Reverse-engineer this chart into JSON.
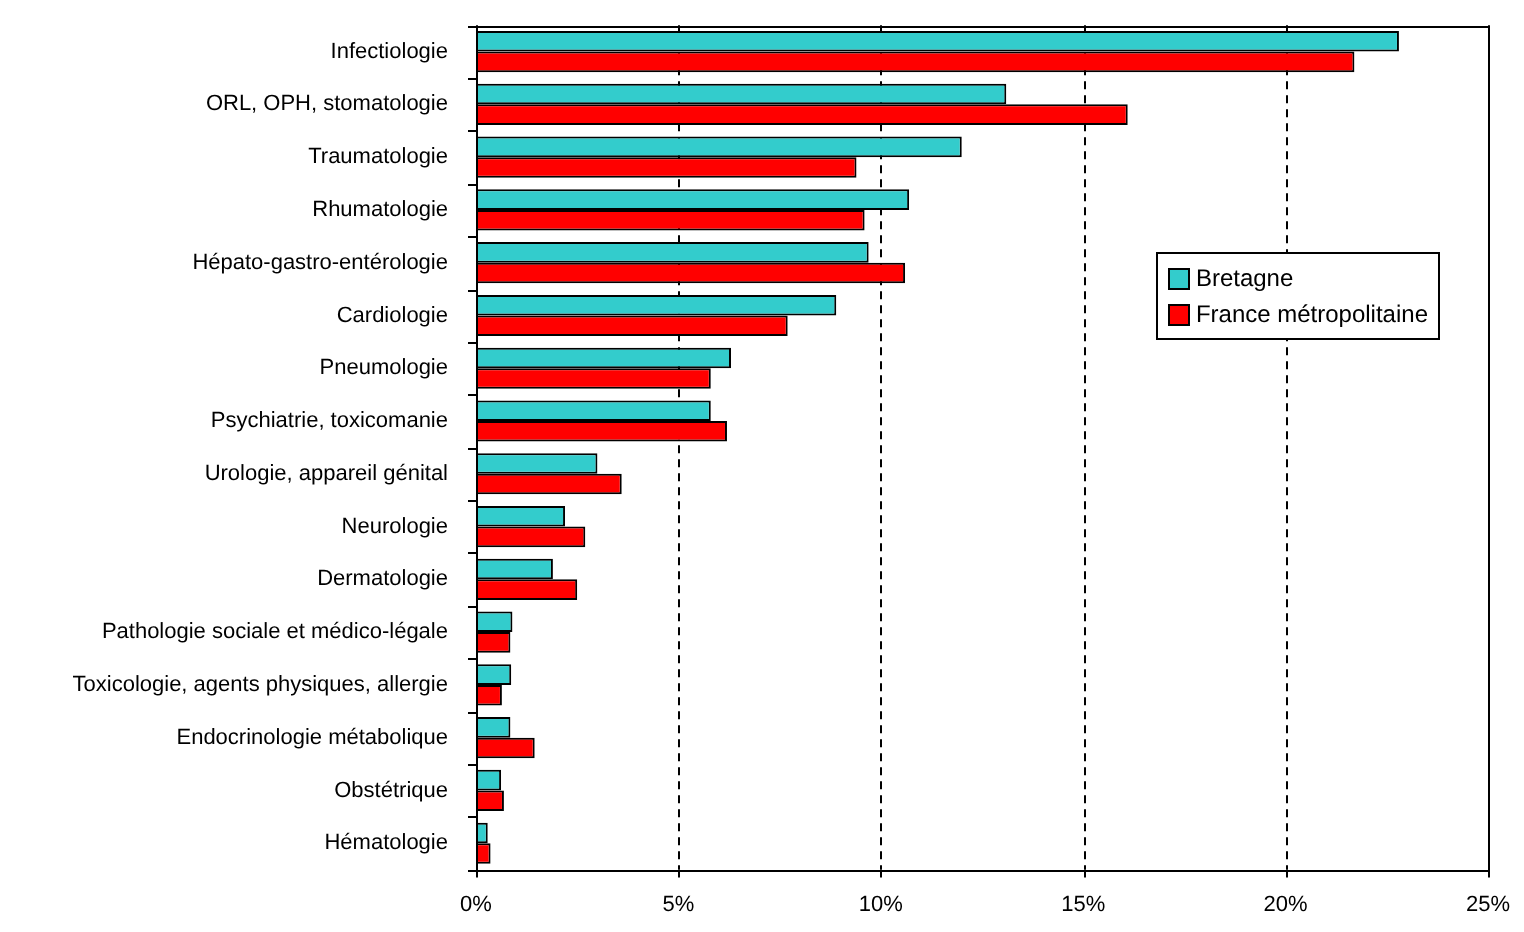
{
  "chart_data": {
    "type": "bar",
    "orientation": "horizontal",
    "categories": [
      "Infectiologie",
      "ORL, OPH, stomatologie",
      "Traumatologie",
      "Rhumatologie",
      "Hépato-gastro-entérologie",
      "Cardiologie",
      "Pneumologie",
      "Psychiatrie, toxicomanie",
      "Urologie, appareil génital",
      "Neurologie",
      "Dermatologie",
      "Pathologie sociale et médico-légale",
      "Toxicologie, agents physiques, allergie",
      "Endocrinologie métabolique",
      "Obstétrique",
      "Hématologie"
    ],
    "series": [
      {
        "name": "Bretagne",
        "color": "#33cccc",
        "values": [
          22.8,
          13.1,
          12.0,
          10.7,
          9.7,
          8.9,
          6.3,
          5.8,
          3.0,
          2.2,
          1.9,
          0.9,
          0.87,
          0.85,
          0.62,
          0.29
        ]
      },
      {
        "name": "France métropolitaine",
        "color": "#ff0000",
        "values": [
          21.7,
          16.1,
          9.4,
          9.6,
          10.6,
          7.7,
          5.8,
          6.2,
          3.6,
          2.7,
          2.5,
          0.85,
          0.64,
          1.45,
          0.69,
          0.36
        ]
      }
    ],
    "xlim": [
      0,
      25
    ],
    "xticks": [
      {
        "value": 0,
        "label": "0%"
      },
      {
        "value": 5,
        "label": "5%"
      },
      {
        "value": 10,
        "label": "10%"
      },
      {
        "value": 15,
        "label": "15%"
      },
      {
        "value": 20,
        "label": "20%"
      },
      {
        "value": 25,
        "label": "25%"
      }
    ],
    "grid": "x",
    "legend": "right"
  }
}
